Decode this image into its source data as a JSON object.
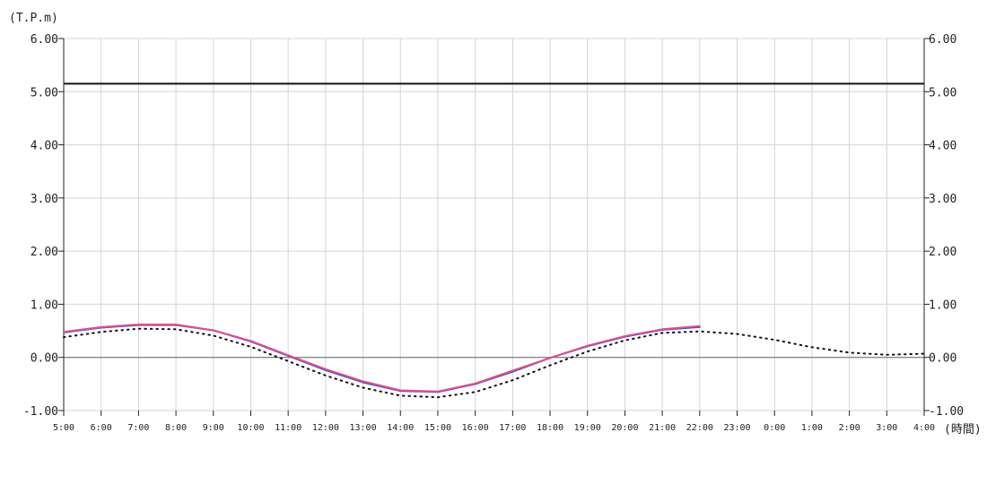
{
  "chart_data": {
    "type": "line",
    "y_unit_label": "(T.P.m)",
    "x_unit_label": "(時間)",
    "ylim": [
      -1.0,
      6.0
    ],
    "y_ticks": [
      "6.00",
      "5.00",
      "4.00",
      "3.00",
      "2.00",
      "1.00",
      "0.00",
      "-1.00"
    ],
    "y_tick_values": [
      6,
      5,
      4,
      3,
      2,
      1,
      0,
      -1
    ],
    "x_categories": [
      "5:00",
      "6:00",
      "7:00",
      "8:00",
      "9:00",
      "10:00",
      "11:00",
      "12:00",
      "13:00",
      "14:00",
      "15:00",
      "16:00",
      "17:00",
      "18:00",
      "19:00",
      "20:00",
      "21:00",
      "22:00",
      "23:00",
      "0:00",
      "1:00",
      "2:00",
      "3:00",
      "4:00"
    ],
    "grid": true,
    "reference_lines": [
      {
        "value": 5.15,
        "color": "#111111",
        "style": "solid"
      },
      {
        "value": 0.0,
        "color": "#666666",
        "style": "solid"
      }
    ],
    "series": [
      {
        "color": "#3a4fd8",
        "style": "solid",
        "values": [
          0.47,
          0.56,
          0.61,
          0.61,
          0.51,
          0.3,
          0.03,
          -0.24,
          -0.47,
          -0.63,
          -0.65,
          -0.5,
          -0.27,
          -0.01,
          0.21,
          0.39,
          0.52,
          0.57
        ]
      },
      {
        "color": "#e0508a",
        "style": "solid",
        "values": [
          0.48,
          0.57,
          0.62,
          0.62,
          0.51,
          0.31,
          0.04,
          -0.22,
          -0.45,
          -0.62,
          -0.64,
          -0.49,
          -0.25,
          -0.01,
          0.22,
          0.4,
          0.53,
          0.59
        ]
      },
      {
        "color": "#111111",
        "style": "dotted",
        "values": [
          0.38,
          0.48,
          0.54,
          0.53,
          0.41,
          0.2,
          -0.07,
          -0.34,
          -0.57,
          -0.72,
          -0.75,
          -0.65,
          -0.43,
          -0.15,
          0.11,
          0.32,
          0.46,
          0.49,
          0.44,
          0.33,
          0.19,
          0.09,
          0.05,
          0.07
        ]
      }
    ]
  }
}
